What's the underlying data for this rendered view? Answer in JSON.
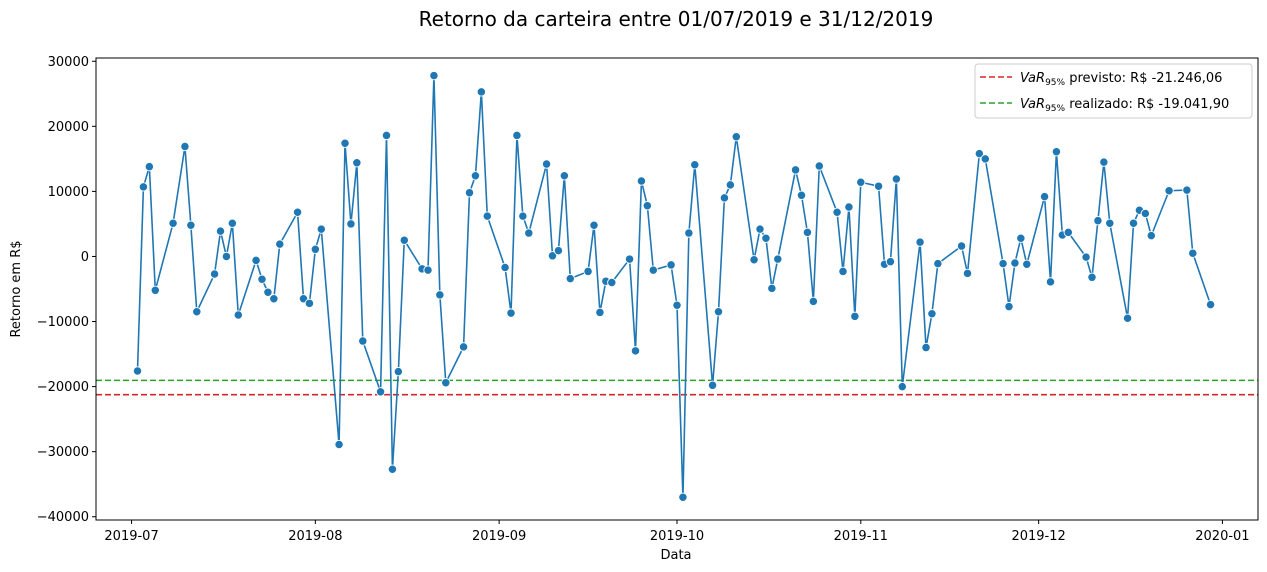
{
  "chart_data": {
    "type": "line",
    "title": "Retorno da carteira entre 01/07/2019 e 31/12/2019",
    "xlabel": "Data",
    "ylabel": "Retorno em R$",
    "xlim": [
      "2019-06-25",
      "2020-01-07"
    ],
    "ylim": [
      -40500,
      30500
    ],
    "grid": false,
    "legend_position": "top-right",
    "x_ticks": [
      {
        "date": "2019-07-01",
        "label": "2019-07"
      },
      {
        "date": "2019-08-01",
        "label": "2019-08"
      },
      {
        "date": "2019-09-01",
        "label": "2019-09"
      },
      {
        "date": "2019-10-01",
        "label": "2019-10"
      },
      {
        "date": "2019-11-01",
        "label": "2019-11"
      },
      {
        "date": "2019-12-01",
        "label": "2019-12"
      },
      {
        "date": "2020-01-01",
        "label": "2020-01"
      }
    ],
    "y_ticks": [
      {
        "value": 30000,
        "label": "30000"
      },
      {
        "value": 20000,
        "label": "20000"
      },
      {
        "value": 10000,
        "label": "10000"
      },
      {
        "value": 0,
        "label": "0"
      },
      {
        "value": -10000,
        "label": "−10000"
      },
      {
        "value": -20000,
        "label": "−20000"
      },
      {
        "value": -30000,
        "label": "−30000"
      },
      {
        "value": -40000,
        "label": "−40000"
      }
    ],
    "series": [
      {
        "color": "#1f77b4",
        "points": [
          [
            "2019-07-02",
            -17600
          ],
          [
            "2019-07-03",
            10700
          ],
          [
            "2019-07-04",
            13800
          ],
          [
            "2019-07-05",
            -5200
          ],
          [
            "2019-07-08",
            5100
          ],
          [
            "2019-07-10",
            16900
          ],
          [
            "2019-07-11",
            4800
          ],
          [
            "2019-07-12",
            -8500
          ],
          [
            "2019-07-15",
            -2700
          ],
          [
            "2019-07-16",
            3900
          ],
          [
            "2019-07-17",
            0
          ],
          [
            "2019-07-18",
            5100
          ],
          [
            "2019-07-19",
            -9000
          ],
          [
            "2019-07-22",
            -600
          ],
          [
            "2019-07-23",
            -3500
          ],
          [
            "2019-07-24",
            -5500
          ],
          [
            "2019-07-25",
            -6500
          ],
          [
            "2019-07-26",
            1900
          ],
          [
            "2019-07-29",
            6800
          ],
          [
            "2019-07-30",
            -6500
          ],
          [
            "2019-07-31",
            -7200
          ],
          [
            "2019-08-01",
            1100
          ],
          [
            "2019-08-02",
            4200
          ],
          [
            "2019-08-05",
            -28900
          ],
          [
            "2019-08-06",
            17400
          ],
          [
            "2019-08-07",
            5000
          ],
          [
            "2019-08-08",
            14400
          ],
          [
            "2019-08-09",
            -13000
          ],
          [
            "2019-08-12",
            -20800
          ],
          [
            "2019-08-13",
            18600
          ],
          [
            "2019-08-14",
            -32700
          ],
          [
            "2019-08-15",
            -17700
          ],
          [
            "2019-08-16",
            2500
          ],
          [
            "2019-08-19",
            -1900
          ],
          [
            "2019-08-20",
            -2100
          ],
          [
            "2019-08-21",
            27800
          ],
          [
            "2019-08-22",
            -5900
          ],
          [
            "2019-08-23",
            -19400
          ],
          [
            "2019-08-26",
            -13900
          ],
          [
            "2019-08-27",
            9800
          ],
          [
            "2019-08-28",
            12400
          ],
          [
            "2019-08-29",
            25300
          ],
          [
            "2019-08-30",
            6200
          ],
          [
            "2019-09-02",
            -1700
          ],
          [
            "2019-09-03",
            -8700
          ],
          [
            "2019-09-04",
            18600
          ],
          [
            "2019-09-05",
            6200
          ],
          [
            "2019-09-06",
            3600
          ],
          [
            "2019-09-09",
            14200
          ],
          [
            "2019-09-10",
            100
          ],
          [
            "2019-09-11",
            900
          ],
          [
            "2019-09-12",
            12400
          ],
          [
            "2019-09-13",
            -3400
          ],
          [
            "2019-09-16",
            -2300
          ],
          [
            "2019-09-17",
            4800
          ],
          [
            "2019-09-18",
            -8600
          ],
          [
            "2019-09-19",
            -3800
          ],
          [
            "2019-09-20",
            -4000
          ],
          [
            "2019-09-23",
            -400
          ],
          [
            "2019-09-24",
            -14500
          ],
          [
            "2019-09-25",
            11600
          ],
          [
            "2019-09-26",
            7800
          ],
          [
            "2019-09-27",
            -2100
          ],
          [
            "2019-09-30",
            -1300
          ],
          [
            "2019-10-01",
            -7500
          ],
          [
            "2019-10-02",
            -37000
          ],
          [
            "2019-10-03",
            3600
          ],
          [
            "2019-10-04",
            14100
          ],
          [
            "2019-10-07",
            -19800
          ],
          [
            "2019-10-08",
            -8500
          ],
          [
            "2019-10-09",
            9000
          ],
          [
            "2019-10-10",
            11000
          ],
          [
            "2019-10-11",
            18400
          ],
          [
            "2019-10-14",
            -500
          ],
          [
            "2019-10-15",
            4200
          ],
          [
            "2019-10-16",
            2800
          ],
          [
            "2019-10-17",
            -4900
          ],
          [
            "2019-10-18",
            -400
          ],
          [
            "2019-10-21",
            13300
          ],
          [
            "2019-10-22",
            9400
          ],
          [
            "2019-10-23",
            3700
          ],
          [
            "2019-10-24",
            -6900
          ],
          [
            "2019-10-25",
            13900
          ],
          [
            "2019-10-28",
            6800
          ],
          [
            "2019-10-29",
            -2300
          ],
          [
            "2019-10-30",
            7600
          ],
          [
            "2019-10-31",
            -9200
          ],
          [
            "2019-11-01",
            11400
          ],
          [
            "2019-11-04",
            10800
          ],
          [
            "2019-11-05",
            -1200
          ],
          [
            "2019-11-06",
            -800
          ],
          [
            "2019-11-07",
            11900
          ],
          [
            "2019-11-08",
            -20000
          ],
          [
            "2019-11-11",
            2200
          ],
          [
            "2019-11-12",
            -14000
          ],
          [
            "2019-11-13",
            -8800
          ],
          [
            "2019-11-14",
            -1100
          ],
          [
            "2019-11-18",
            1600
          ],
          [
            "2019-11-19",
            -2600
          ],
          [
            "2019-11-21",
            15800
          ],
          [
            "2019-11-22",
            15000
          ],
          [
            "2019-11-25",
            -1100
          ],
          [
            "2019-11-26",
            -7700
          ],
          [
            "2019-11-27",
            -1000
          ],
          [
            "2019-11-28",
            2800
          ],
          [
            "2019-11-29",
            -1200
          ],
          [
            "2019-12-02",
            9200
          ],
          [
            "2019-12-03",
            -3900
          ],
          [
            "2019-12-04",
            16100
          ],
          [
            "2019-12-05",
            3300
          ],
          [
            "2019-12-06",
            3700
          ],
          [
            "2019-12-09",
            -100
          ],
          [
            "2019-12-10",
            -3200
          ],
          [
            "2019-12-11",
            5500
          ],
          [
            "2019-12-12",
            14500
          ],
          [
            "2019-12-13",
            5100
          ],
          [
            "2019-12-16",
            -9500
          ],
          [
            "2019-12-17",
            5100
          ],
          [
            "2019-12-18",
            7100
          ],
          [
            "2019-12-19",
            6600
          ],
          [
            "2019-12-20",
            3200
          ],
          [
            "2019-12-23",
            10100
          ],
          [
            "2019-12-26",
            10200
          ],
          [
            "2019-12-27",
            500
          ],
          [
            "2019-12-30",
            -7400
          ]
        ]
      }
    ],
    "hlines": [
      {
        "value": -21246.06,
        "color": "#d62728",
        "legend_label": {
          "math": "VaR",
          "sub": "95%",
          "text": " previsto: R$ -21.246,06"
        }
      },
      {
        "value": -19041.9,
        "color": "#2ca02c",
        "legend_label": {
          "math": "VaR",
          "sub": "95%",
          "text": " realizado: R$ -19.041,90"
        }
      }
    ]
  }
}
